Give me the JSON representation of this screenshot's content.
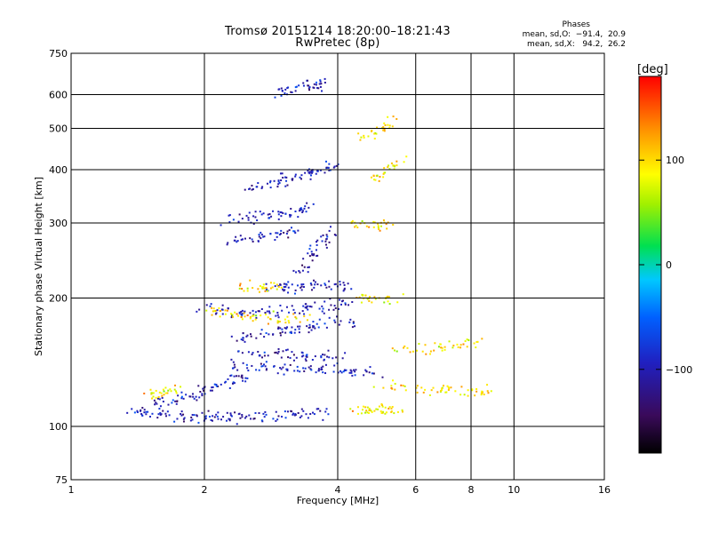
{
  "header": {
    "title_line1": "Tromsø 20151214 18:20:00–18:21:43",
    "title_line2": "RwPretec (8p)",
    "phases_title": "Phases",
    "phases_o": "mean, sd,O:  −91.4,  20.9",
    "phases_x": "mean, sd,X:   94.2,  26.2"
  },
  "colorbar": {
    "unit": "[deg]",
    "min": -180,
    "max": 180,
    "ticks": [
      {
        "value": 100,
        "label": "100"
      },
      {
        "value": 0,
        "label": "0"
      },
      {
        "value": -100,
        "label": "−100"
      }
    ]
  },
  "chart_data": {
    "type": "scatter",
    "title": "Tromsø 20151214 18:20:00–18:21:43",
    "subtitle": "RwPretec (8p)",
    "xlabel": "Frequency [MHz]",
    "ylabel": "Stationary phase Virtual Height [km]",
    "x_scale": "log",
    "y_scale": "log",
    "xlim": [
      1,
      16
    ],
    "ylim": [
      75,
      750
    ],
    "xticks": [
      1,
      2,
      4,
      6,
      8,
      10,
      16
    ],
    "yticks": [
      75,
      100,
      200,
      300,
      400,
      500,
      600,
      750
    ],
    "grid": true,
    "colorscale": "phase in degrees (-180 to 180)",
    "series": [
      {
        "name": "O",
        "color_hint": "blue/violet (~ -100 deg)",
        "traces": [
          {
            "x": [
              1.35,
              1.5,
              1.7,
              1.9,
              2.1,
              2.3,
              2.6,
              3.0,
              3.4,
              3.8
            ],
            "y": [
              110,
              107,
              106,
              105,
              105,
              105,
              106,
              106,
              107,
              108
            ]
          },
          {
            "x": [
              1.5,
              1.7,
              1.9,
              2.1,
              2.3,
              2.5
            ],
            "y": [
              112,
              115,
              118,
              123,
              128,
              132
            ]
          },
          {
            "x": [
              2.3,
              2.6,
              3.0,
              3.4,
              3.8,
              4.3,
              4.8
            ],
            "y": [
              140,
              138,
              137,
              136,
              135,
              134,
              133
            ]
          },
          {
            "x": [
              2.4,
              2.8,
              3.2,
              3.6,
              4.0
            ],
            "y": [
              150,
              148,
              147,
              146,
              146
            ]
          },
          {
            "x": [
              2.3,
              2.6,
              3.0,
              3.4,
              3.8,
              4.3
            ],
            "y": [
              161,
              164,
              167,
              171,
              175,
              177
            ]
          },
          {
            "x": [
              2.0,
              2.3,
              2.6,
              3.0,
              3.4,
              3.8,
              4.2
            ],
            "y": [
              188,
              186,
              185,
              186,
              188,
              191,
              194
            ]
          },
          {
            "x": [
              2.8,
              3.1,
              3.4,
              3.8,
              4.2
            ],
            "y": [
              212,
              212,
              213,
              214,
              215
            ]
          },
          {
            "x": [
              2.3,
              2.6,
              2.9,
              3.2
            ],
            "y": [
              275,
              278,
              282,
              285
            ]
          },
          {
            "x": [
              2.3,
              2.6,
              2.9,
              3.2,
              3.5
            ],
            "y": [
              305,
              310,
              315,
              320,
              325
            ]
          },
          {
            "x": [
              3.3,
              3.5,
              3.7,
              3.9
            ],
            "y": [
              230,
              250,
              270,
              290
            ]
          },
          {
            "x": [
              2.5,
              2.8,
              3.1,
              3.4,
              3.7,
              3.9
            ],
            "y": [
              360,
              370,
              380,
              390,
              400,
              410
            ]
          },
          {
            "x": [
              2.9,
              3.2,
              3.5,
              3.8
            ],
            "y": [
              600,
              620,
              630,
              640
            ]
          }
        ]
      },
      {
        "name": "X",
        "color_hint": "yellow/orange (~ +100 deg)",
        "traces": [
          {
            "x": [
              2.0,
              2.3,
              2.6,
              3.0,
              3.4
            ],
            "y": [
              188,
              183,
              180,
              179,
              180
            ]
          },
          {
            "x": [
              2.4,
              2.7,
              3.0
            ],
            "y": [
              212,
              212,
              213
            ]
          },
          {
            "x": [
              4.3,
              4.7,
              5.1,
              5.5
            ],
            "y": [
              108,
              109,
              110,
              110
            ]
          },
          {
            "x": [
              4.4,
              4.9,
              5.4
            ],
            "y": [
              200,
              198,
              197
            ]
          },
          {
            "x": [
              4.3,
              4.8,
              5.3
            ],
            "y": [
              300,
              298,
              296
            ]
          },
          {
            "x": [
              4.8,
              5.2,
              5.6
            ],
            "y": [
              380,
              400,
              420
            ]
          },
          {
            "x": [
              4.6,
              5.0,
              5.4
            ],
            "y": [
              480,
              500,
              520
            ]
          },
          {
            "x": [
              5.0,
              6.0,
              7.0,
              8.0,
              9.0
            ],
            "y": [
              125,
              123,
              122,
              121,
              120
            ]
          },
          {
            "x": [
              1.45,
              1.6,
              1.75
            ],
            "y": [
              118,
              120,
              123
            ]
          },
          {
            "x": [
              5.5,
              6.5,
              7.5,
              8.5
            ],
            "y": [
              150,
              152,
              155,
              158
            ]
          }
        ]
      }
    ]
  }
}
